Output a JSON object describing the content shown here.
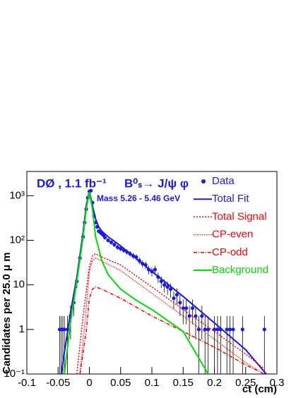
{
  "chart_data": {
    "type": "line",
    "annotations": [
      "DØ , 1.1 fb⁻¹",
      "B⁰ₛ→ J/ψ φ",
      "Mass 5.26 - 5.46 GeV"
    ],
    "xlabel": "ct  (cm)",
    "ylabel": "Candidates per 25.0 μ m",
    "log_y": true,
    "legend": "top-right",
    "xlim": [
      -0.1,
      0.3
    ],
    "xticks": [
      -0.1,
      -0.05,
      0,
      0.05,
      0.1,
      0.15,
      0.2,
      0.25,
      0.3
    ],
    "ylim": [
      0.1,
      3500
    ],
    "yticks": [
      {
        "value": 0.1,
        "label": "10⁻¹"
      },
      1,
      10,
      {
        "value": 100,
        "label": "10²"
      },
      {
        "value": 1000,
        "label": "10³"
      }
    ],
    "series": [
      {
        "name": "Data",
        "color": "#1a1ae6",
        "style": "points",
        "x": [
          -0.0475,
          -0.045,
          -0.0425,
          -0.04,
          -0.035,
          -0.03,
          -0.025,
          -0.02,
          -0.015,
          -0.01,
          -0.0075,
          -0.005,
          -0.0025,
          0,
          0.0025,
          0.005,
          0.0075,
          0.01,
          0.0125,
          0.015,
          0.0175,
          0.02,
          0.0225,
          0.025,
          0.03,
          0.035,
          0.04,
          0.045,
          0.05,
          0.055,
          0.06,
          0.065,
          0.07,
          0.075,
          0.08,
          0.085,
          0.09,
          0.095,
          0.1,
          0.105,
          0.11,
          0.115,
          0.12,
          0.125,
          0.13,
          0.135,
          0.14,
          0.145,
          0.15,
          0.155,
          0.16,
          0.165,
          0.17,
          0.175,
          0.18,
          0.185,
          0.19,
          0.2,
          0.205,
          0.21,
          0.22,
          0.225,
          0.23,
          0.245,
          0.28
        ],
        "values": [
          1,
          1,
          1,
          1,
          1,
          2,
          4,
          12,
          40,
          120,
          250,
          500,
          900,
          1250,
          1300,
          700,
          350,
          250,
          200,
          160,
          150,
          140,
          130,
          115,
          100,
          90,
          80,
          70,
          65,
          60,
          55,
          50,
          45,
          42,
          35,
          30,
          28,
          22,
          20,
          22,
          15,
          12,
          10,
          9,
          8,
          5,
          6,
          4,
          3,
          3,
          2,
          3,
          2,
          1,
          2,
          1,
          1,
          1,
          1,
          1,
          1,
          1,
          1,
          1,
          1
        ],
        "errors": [
          1,
          1,
          1,
          1,
          1,
          1.4,
          2,
          3.5,
          6.3,
          11,
          16,
          22,
          30,
          35,
          36,
          26,
          19,
          16,
          14,
          13,
          12,
          12,
          11,
          11,
          10,
          9.5,
          9,
          8.4,
          8.1,
          7.7,
          7.4,
          7.1,
          6.7,
          6.5,
          5.9,
          5.5,
          5.3,
          4.7,
          4.5,
          4.7,
          3.9,
          3.5,
          3.2,
          3,
          2.8,
          2.2,
          2.4,
          2,
          1.7,
          1.7,
          1.4,
          1.7,
          1.4,
          1,
          1.4,
          1,
          1,
          1,
          1,
          1,
          1,
          1,
          1,
          1,
          1
        ]
      },
      {
        "name": "Total Fit",
        "color": "#1a1ae6",
        "style": "solid",
        "x": [
          -0.045,
          -0.04,
          -0.03,
          -0.02,
          -0.01,
          -0.005,
          0,
          0.005,
          0.01,
          0.015,
          0.02,
          0.03,
          0.04,
          0.05,
          0.1,
          0.15,
          0.2,
          0.25,
          0.283
        ],
        "values": [
          0.1,
          0.3,
          2.5,
          15,
          150,
          600,
          1300,
          600,
          300,
          200,
          160,
          120,
          95,
          75,
          20,
          5.5,
          1.4,
          0.35,
          0.1
        ]
      },
      {
        "name": "Total Signal",
        "color": "#ff0000",
        "style": "dotted",
        "x": [
          -0.02,
          -0.01,
          0,
          0.005,
          0.01,
          0.02,
          0.05,
          0.1,
          0.15,
          0.2,
          0.25,
          0.28
        ],
        "values": [
          0.1,
          2,
          25,
          45,
          50,
          42,
          28,
          9,
          2.8,
          0.9,
          0.28,
          0.13
        ]
      },
      {
        "name": "CP-even",
        "color": "#ff0000",
        "style": "finedot",
        "x": [
          -0.015,
          -0.005,
          0,
          0.005,
          0.01,
          0.02,
          0.05,
          0.1,
          0.15,
          0.2,
          0.25,
          0.27
        ],
        "values": [
          0.1,
          3,
          20,
          35,
          40,
          34,
          21,
          6.5,
          2,
          0.6,
          0.18,
          0.12
        ]
      },
      {
        "name": "CP-odd",
        "color": "#ff0000",
        "style": "dashdot",
        "x": [
          -0.015,
          -0.005,
          0,
          0.005,
          0.01,
          0.02,
          0.05,
          0.1,
          0.15,
          0.2,
          0.25,
          0.28
        ],
        "values": [
          0.1,
          0.9,
          5,
          8,
          9,
          8,
          5,
          2,
          0.9,
          0.4,
          0.16,
          0.1
        ]
      },
      {
        "name": "Background",
        "color": "#00dd00",
        "style": "solid",
        "x": [
          -0.04,
          -0.03,
          -0.02,
          -0.01,
          -0.005,
          0,
          0.005,
          0.01,
          0.02,
          0.03,
          0.05,
          0.075,
          0.1,
          0.15,
          0.19
        ],
        "values": [
          0.1,
          1.5,
          12,
          120,
          500,
          1200,
          500,
          120,
          35,
          17,
          8,
          4.5,
          2.8,
          0.9,
          0.1
        ]
      }
    ]
  }
}
